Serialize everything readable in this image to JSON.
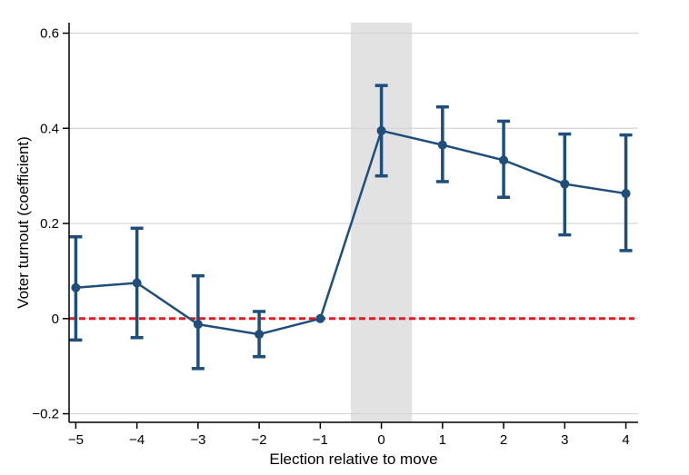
{
  "chart_data": {
    "type": "line",
    "title": "",
    "xlabel": "Election relative to move",
    "ylabel": "Voter turnout (coefficient)",
    "x": [
      -5,
      -4,
      -3,
      -2,
      -1,
      0,
      1,
      2,
      3,
      4
    ],
    "xtick_labels": [
      "−5",
      "−4",
      "−3",
      "−2",
      "−1",
      "0",
      "1",
      "2",
      "3",
      "4"
    ],
    "series": [
      {
        "name": "coefficient",
        "values": [
          0.065,
          0.075,
          -0.012,
          -0.033,
          0,
          0.395,
          0.365,
          0.333,
          0.283,
          0.263
        ],
        "ci_low": [
          -0.045,
          -0.04,
          -0.105,
          -0.08,
          null,
          0.3,
          0.288,
          0.255,
          0.176,
          0.143
        ],
        "ci_high": [
          0.172,
          0.19,
          0.09,
          0.015,
          null,
          0.49,
          0.445,
          0.415,
          0.388,
          0.386
        ]
      }
    ],
    "yticks": [
      -0.2,
      0,
      0.2,
      0.4,
      0.6
    ],
    "ytick_labels": [
      "−0.2",
      "0",
      "0.2",
      "0.4",
      "0.6"
    ],
    "ylim": [
      -0.218,
      0.622
    ],
    "xlim": [
      -5.11,
      4.2
    ],
    "grid": true,
    "legend": false,
    "reference_line": {
      "y": 0,
      "style": "dashed",
      "color": "#e41b23"
    },
    "shaded_band": {
      "x_from": -0.5,
      "x_to": 0.5,
      "color": "#e2e2e2"
    },
    "colors": {
      "series": "#1e4e79",
      "grid": "#d4d4d4",
      "axis": "#000000",
      "background": "#ffffff"
    }
  }
}
